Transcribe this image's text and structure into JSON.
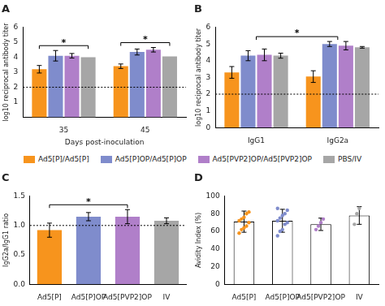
{
  "chart_data": [
    {
      "type": "bar",
      "title": "A",
      "x_label": "Days post-inoculation",
      "y_label": "log10 reciprocal antibody titer",
      "categories": [
        "35",
        "45"
      ],
      "series": [
        {
          "name": "Ad5[P]/Ad5[P]",
          "color": "#f7941d",
          "values": [
            3.2,
            3.4
          ],
          "errors": [
            0.25,
            0.15
          ]
        },
        {
          "name": "Ad5[P]OP/Ad5[P]OP",
          "color": "#7f8ccc",
          "values": [
            4.1,
            4.35
          ],
          "errors": [
            0.35,
            0.2
          ]
        },
        {
          "name": "Ad5[PVP2]OP/Ad5[PVP2]OP",
          "color": "#b07fc9",
          "values": [
            4.1,
            4.5
          ],
          "errors": [
            0.15,
            0.15
          ]
        },
        {
          "name": "PBS/IV",
          "color": "#a6a6a6",
          "values": [
            4.0,
            4.05
          ],
          "errors": [
            null,
            null
          ]
        }
      ],
      "ylim": [
        0,
        6
      ],
      "yticks": [
        1,
        2,
        3,
        4,
        5,
        6
      ],
      "grid": false,
      "legend": "bottom",
      "reference_line": 2,
      "significance": [
        {
          "text": "*",
          "category": "35"
        },
        {
          "text": "*",
          "category": "45"
        }
      ]
    },
    {
      "type": "bar",
      "title": "B",
      "y_label": "log10 reciprocal antibody titer",
      "categories": [
        "IgG1",
        "IgG2a"
      ],
      "series": [
        {
          "name": "Ad5[P]/Ad5[P]",
          "color": "#f7941d",
          "values": [
            3.3,
            3.05
          ],
          "errors": [
            0.35,
            0.35
          ]
        },
        {
          "name": "Ad5[P]OP/Ad5[P]OP",
          "color": "#7f8ccc",
          "values": [
            4.3,
            5.0
          ],
          "errors": [
            0.3,
            0.15
          ]
        },
        {
          "name": "Ad5[PVP2]OP/Ad5[PVP2]OP",
          "color": "#b07fc9",
          "values": [
            4.35,
            4.9
          ],
          "errors": [
            0.35,
            0.25
          ]
        },
        {
          "name": "PBS/IV",
          "color": "#a6a6a6",
          "values": [
            4.3,
            4.8
          ],
          "errors": [
            0.15,
            0.05
          ]
        }
      ],
      "ylim": [
        0,
        6
      ],
      "yticks": [
        0,
        1,
        2,
        3,
        4,
        5,
        6
      ],
      "grid": false,
      "reference_line": 2,
      "significance": [
        {
          "text": "*",
          "from": "IgG1",
          "to": "IgG2a"
        }
      ]
    },
    {
      "type": "bar",
      "title": "C",
      "y_label": "IgG2a/IgG1 ratio",
      "categories": [
        "Ad5[P]",
        "Ad5[P]OP",
        "Ad5[PVP2]OP",
        "IV"
      ],
      "values": [
        0.92,
        1.15,
        1.15,
        1.08
      ],
      "errors": [
        0.12,
        0.07,
        0.12,
        0.05
      ],
      "colors": [
        "#f7941d",
        "#7f8ccc",
        "#b07fc9",
        "#a6a6a6"
      ],
      "ylim": [
        0,
        1.5
      ],
      "yticks": [
        {
          "value": 0,
          "label": "0.0"
        },
        {
          "value": 0.5,
          "label": "0.5"
        },
        {
          "value": 1,
          "label": "1.0"
        },
        {
          "value": 1.5,
          "label": "1.5"
        }
      ],
      "grid": false,
      "reference_line": 1,
      "significance": [
        {
          "text": "*",
          "from": "Ad5[P]",
          "to": "Ad5[PVP2]OP"
        }
      ]
    },
    {
      "type": "bar",
      "title": "D",
      "y_label": "Avidity Index (%)",
      "categories": [
        "Ad5[P]",
        "Ad5[P]OP",
        "Ad5[PVP2]OP",
        "IV"
      ],
      "values": [
        71,
        72,
        68,
        78
      ],
      "errors": [
        12,
        13,
        7,
        10
      ],
      "color": "#ffffff",
      "points": [
        [
          58,
          62,
          64,
          66,
          70,
          72,
          74,
          76,
          80,
          82
        ],
        [
          55,
          60,
          62,
          68,
          70,
          72,
          75,
          78,
          80,
          84,
          86
        ],
        [
          62,
          66,
          70,
          74
        ],
        [
          68,
          80,
          86
        ]
      ],
      "colors": [
        "#f7941d",
        "#7f8ccc",
        "#b07fc9",
        "#a6a6a6"
      ],
      "ylim": [
        0,
        100
      ],
      "yticks": [
        0,
        20,
        40,
        60,
        80,
        100
      ],
      "grid": false
    }
  ]
}
